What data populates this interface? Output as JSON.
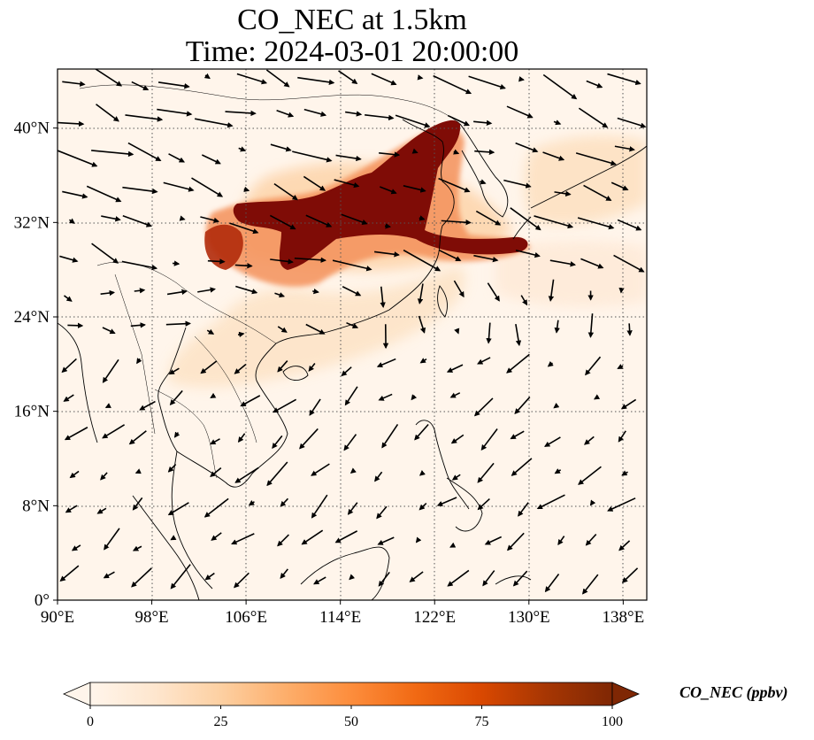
{
  "title": {
    "line1": "CO_NEC at 1.5km",
    "line2": "Time: 2024-03-01 20:00:00"
  },
  "map": {
    "extent": {
      "lon_min": 90,
      "lon_max": 140,
      "lat_min": 0,
      "lat_max": 45
    },
    "lon_ticks": [
      90,
      98,
      106,
      114,
      122,
      130,
      138
    ],
    "lat_ticks": [
      0,
      8,
      16,
      24,
      32,
      40
    ],
    "lon_tick_labels": [
      "90°E",
      "98°E",
      "106°E",
      "114°E",
      "122°E",
      "130°E",
      "138°E"
    ],
    "lat_tick_labels": [
      "0°",
      "8°N",
      "16°N",
      "24°N",
      "32°N",
      "40°N"
    ],
    "gridlines": "dotted",
    "background_color": "#fff5eb",
    "plume_regions": [
      {
        "region": "North China Plain / Yangtze (core)",
        "lon_range": [
          106,
          122
        ],
        "lat_range": [
          29,
          41
        ],
        "value_ppbv": 100
      },
      {
        "region": "Sichuan Basin",
        "lon_range": [
          103,
          107
        ],
        "lat_range": [
          29,
          33
        ],
        "value_ppbv": 80
      },
      {
        "region": "East China Sea outflow",
        "lon_range": [
          122,
          130
        ],
        "lat_range": [
          29,
          31
        ],
        "value_ppbv": 90
      },
      {
        "region": "South China / Indochina",
        "lon_range": [
          104,
          118
        ],
        "lat_range": [
          18,
          26
        ],
        "value_ppbv": 20
      },
      {
        "region": "Japan / NW Pacific",
        "lon_range": [
          130,
          140
        ],
        "lat_range": [
          31,
          38
        ],
        "value_ppbv": 12
      }
    ],
    "wind_vectors": "black arrows, predominantly easterly/northeasterly south of 24°N and westerly/northwesterly north of 28°N"
  },
  "colorbar": {
    "label": "CO_NEC (ppbv)",
    "cmap_colors": [
      "#fff5eb",
      "#fee6ce",
      "#fdd0a2",
      "#fdae6b",
      "#fd8d3c",
      "#f16913",
      "#d94801",
      "#a63603",
      "#7f2704"
    ],
    "ticks": [
      {
        "value": 0,
        "label": "0"
      },
      {
        "value": 25,
        "label": "25"
      },
      {
        "value": 50,
        "label": "50"
      },
      {
        "value": 75,
        "label": "75"
      },
      {
        "value": 100,
        "label": "100"
      }
    ],
    "range": [
      0,
      100
    ],
    "extend": "both"
  }
}
